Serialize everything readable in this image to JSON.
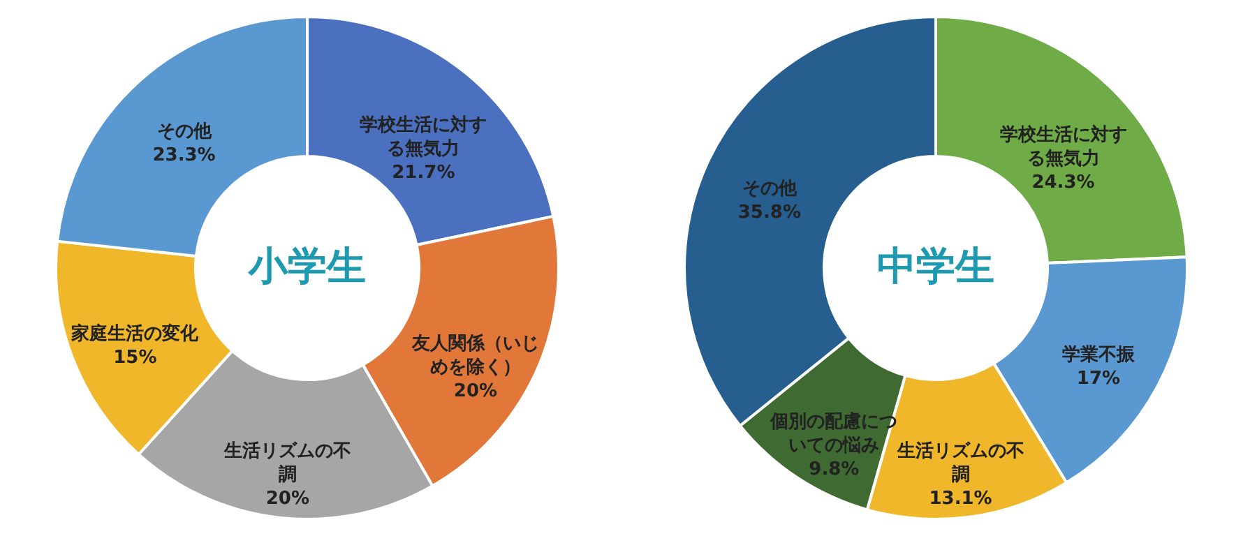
{
  "chart_data": [
    {
      "type": "donut",
      "title": "小学生",
      "categories": [
        "学校生活に対する無気力",
        "友人関係（いじめを除く）",
        "生活リズムの不調",
        "家庭生活の変化",
        "その他"
      ],
      "values": [
        21.7,
        20,
        20,
        15,
        23.3
      ],
      "value_labels": [
        "21.7%",
        "20%",
        "20%",
        "15%",
        "23.3%"
      ],
      "colors": [
        "#4a70bf",
        "#e1783a",
        "#a6a6a6",
        "#f1b72a",
        "#5a98d2"
      ]
    },
    {
      "type": "donut",
      "title": "中学生",
      "categories": [
        "学校生活に対する無気力",
        "学業不振",
        "生活リズムの不調",
        "個別の配慮についての悩み",
        "その他"
      ],
      "values": [
        24.3,
        17,
        13.1,
        9.8,
        35.8
      ],
      "value_labels": [
        "24.3%",
        "17%",
        "13.1%",
        "9.8%",
        "35.8%"
      ],
      "colors": [
        "#6fab46",
        "#5a98d2",
        "#f1b72a",
        "#3f6a32",
        "#265e90"
      ]
    }
  ]
}
